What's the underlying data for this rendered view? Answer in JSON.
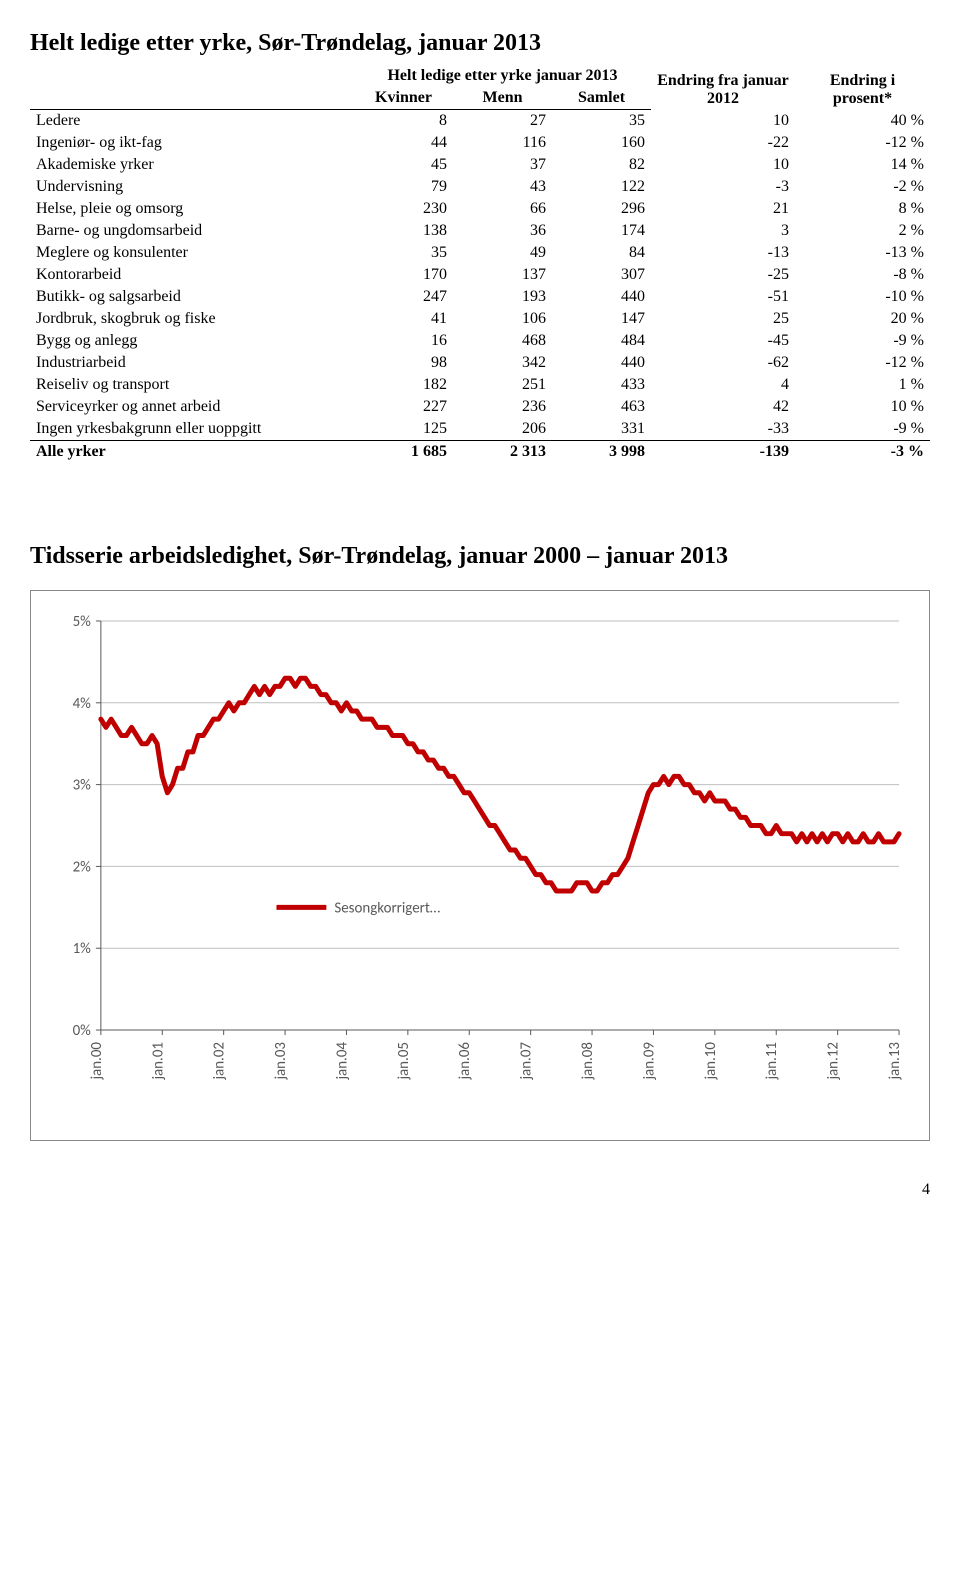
{
  "table": {
    "title": "Helt ledige etter yrke, Sør-Trøndelag, januar 2013",
    "group_header": "Helt ledige etter yrke januar 2013",
    "columns": {
      "kvinner": "Kvinner",
      "menn": "Menn",
      "samlet": "Samlet",
      "endring_fra": "Endring fra januar 2012",
      "endring_i": "Endring i prosent*"
    },
    "rows": [
      {
        "label": "Ledere",
        "kvinner": "8",
        "menn": "27",
        "samlet": "35",
        "delta": "10",
        "pct": "40 %"
      },
      {
        "label": "Ingeniør- og ikt-fag",
        "kvinner": "44",
        "menn": "116",
        "samlet": "160",
        "delta": "-22",
        "pct": "-12 %"
      },
      {
        "label": "Akademiske yrker",
        "kvinner": "45",
        "menn": "37",
        "samlet": "82",
        "delta": "10",
        "pct": "14 %"
      },
      {
        "label": "Undervisning",
        "kvinner": "79",
        "menn": "43",
        "samlet": "122",
        "delta": "-3",
        "pct": "-2 %"
      },
      {
        "label": "Helse, pleie og omsorg",
        "kvinner": "230",
        "menn": "66",
        "samlet": "296",
        "delta": "21",
        "pct": "8 %"
      },
      {
        "label": "Barne- og ungdomsarbeid",
        "kvinner": "138",
        "menn": "36",
        "samlet": "174",
        "delta": "3",
        "pct": "2 %"
      },
      {
        "label": "Meglere og konsulenter",
        "kvinner": "35",
        "menn": "49",
        "samlet": "84",
        "delta": "-13",
        "pct": "-13 %"
      },
      {
        "label": "Kontorarbeid",
        "kvinner": "170",
        "menn": "137",
        "samlet": "307",
        "delta": "-25",
        "pct": "-8 %"
      },
      {
        "label": "Butikk- og salgsarbeid",
        "kvinner": "247",
        "menn": "193",
        "samlet": "440",
        "delta": "-51",
        "pct": "-10 %"
      },
      {
        "label": "Jordbruk, skogbruk og fiske",
        "kvinner": "41",
        "menn": "106",
        "samlet": "147",
        "delta": "25",
        "pct": "20 %"
      },
      {
        "label": "Bygg og anlegg",
        "kvinner": "16",
        "menn": "468",
        "samlet": "484",
        "delta": "-45",
        "pct": "-9 %"
      },
      {
        "label": "Industriarbeid",
        "kvinner": "98",
        "menn": "342",
        "samlet": "440",
        "delta": "-62",
        "pct": "-12 %"
      },
      {
        "label": "Reiseliv og transport",
        "kvinner": "182",
        "menn": "251",
        "samlet": "433",
        "delta": "4",
        "pct": "1 %"
      },
      {
        "label": "Serviceyrker og annet arbeid",
        "kvinner": "227",
        "menn": "236",
        "samlet": "463",
        "delta": "42",
        "pct": "10 %"
      },
      {
        "label": "Ingen yrkesbakgrunn eller uoppgitt",
        "kvinner": "125",
        "menn": "206",
        "samlet": "331",
        "delta": "-33",
        "pct": "-9 %"
      }
    ],
    "total": {
      "label": "Alle yrker",
      "kvinner": "1 685",
      "menn": "2 313",
      "samlet": "3 998",
      "delta": "-139",
      "pct": "-3 %"
    }
  },
  "chart": {
    "title": "Tidsserie arbeidsledighet, Sør-Trøndelag, januar 2000 – januar 2013",
    "type": "line",
    "x_labels": [
      "jan.00",
      "jan.01",
      "jan.02",
      "jan.03",
      "jan.04",
      "jan.05",
      "jan.06",
      "jan.07",
      "jan.08",
      "jan.09",
      "jan.10",
      "jan.11",
      "jan.12",
      "jan.13"
    ],
    "y_ticks": [
      "0%",
      "1%",
      "2%",
      "3%",
      "4%",
      "5%"
    ],
    "ylim": [
      0,
      5
    ],
    "background_color": "#ffffff",
    "grid_color": "#bfbfbf",
    "axis_label_color": "#595959",
    "axis_label_fontsize": 15,
    "tick_fontsize": 15,
    "legend_label": "Sesongkorrigert…",
    "legend_fontsize": 15,
    "series": {
      "color": "#c00000",
      "line_width": 5,
      "values": [
        3.8,
        3.7,
        3.8,
        3.7,
        3.6,
        3.6,
        3.7,
        3.6,
        3.5,
        3.5,
        3.6,
        3.5,
        3.1,
        2.9,
        3.0,
        3.2,
        3.2,
        3.4,
        3.4,
        3.6,
        3.6,
        3.7,
        3.8,
        3.8,
        3.9,
        4.0,
        3.9,
        4.0,
        4.0,
        4.1,
        4.2,
        4.1,
        4.2,
        4.1,
        4.2,
        4.2,
        4.3,
        4.3,
        4.2,
        4.3,
        4.3,
        4.2,
        4.2,
        4.1,
        4.1,
        4.0,
        4.0,
        3.9,
        4.0,
        3.9,
        3.9,
        3.8,
        3.8,
        3.8,
        3.7,
        3.7,
        3.7,
        3.6,
        3.6,
        3.6,
        3.5,
        3.5,
        3.4,
        3.4,
        3.3,
        3.3,
        3.2,
        3.2,
        3.1,
        3.1,
        3.0,
        2.9,
        2.9,
        2.8,
        2.7,
        2.6,
        2.5,
        2.5,
        2.4,
        2.3,
        2.2,
        2.2,
        2.1,
        2.1,
        2.0,
        1.9,
        1.9,
        1.8,
        1.8,
        1.7,
        1.7,
        1.7,
        1.7,
        1.8,
        1.8,
        1.8,
        1.7,
        1.7,
        1.8,
        1.8,
        1.9,
        1.9,
        2.0,
        2.1,
        2.3,
        2.5,
        2.7,
        2.9,
        3.0,
        3.0,
        3.1,
        3.0,
        3.1,
        3.1,
        3.0,
        3.0,
        2.9,
        2.9,
        2.8,
        2.9,
        2.8,
        2.8,
        2.8,
        2.7,
        2.7,
        2.6,
        2.6,
        2.5,
        2.5,
        2.5,
        2.4,
        2.4,
        2.5,
        2.4,
        2.4,
        2.4,
        2.3,
        2.4,
        2.3,
        2.4,
        2.3,
        2.4,
        2.3,
        2.4,
        2.4,
        2.3,
        2.4,
        2.3,
        2.3,
        2.4,
        2.3,
        2.3,
        2.4,
        2.3,
        2.3,
        2.3,
        2.4
      ]
    }
  },
  "page_number": "4"
}
